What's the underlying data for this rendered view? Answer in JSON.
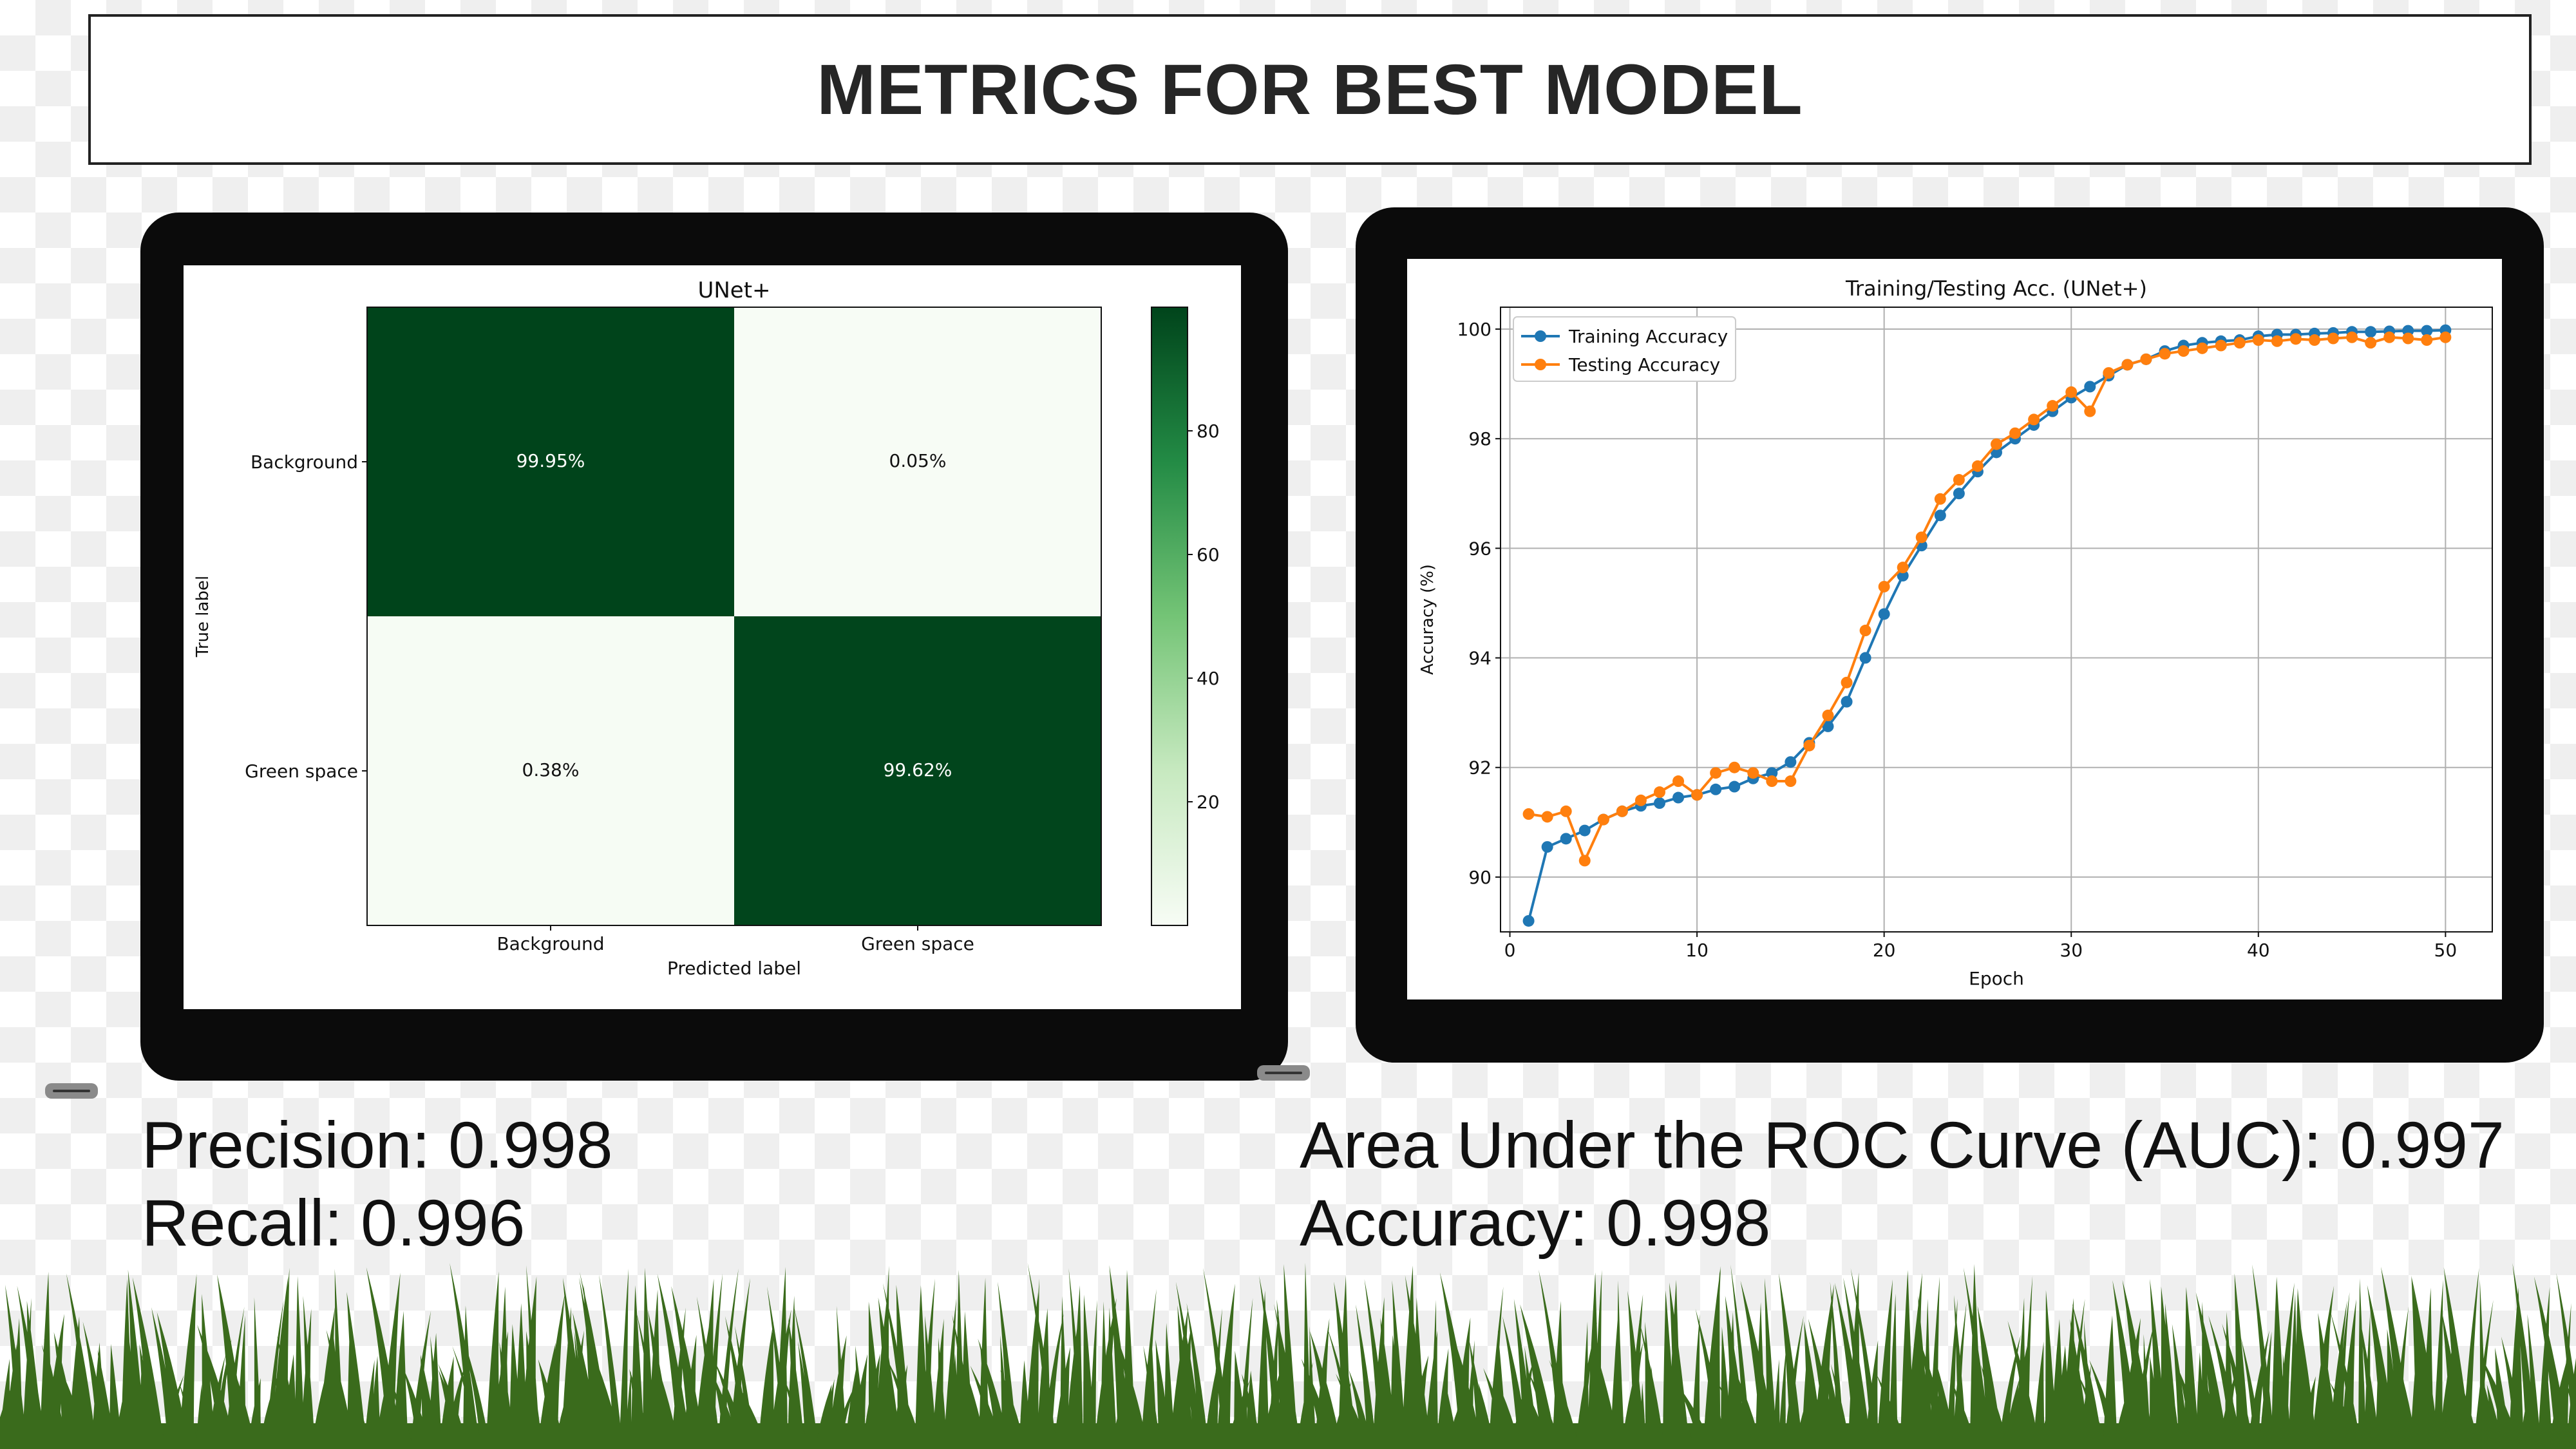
{
  "title": "METRICS FOR BEST MODEL",
  "metrics": {
    "precision": "Precision: 0.998",
    "recall": "Recall: 0.996",
    "auc": "Area Under the ROC Curve (AUC): 0.997",
    "accuracy": "Accuracy: 0.998"
  },
  "colors": {
    "cm_dark": "#00441b",
    "cm_light": "#f7fcf5",
    "train": "#1f77b4",
    "test": "#ff7f0e",
    "grass": "#3a6b1c"
  },
  "chart_data": [
    {
      "type": "heatmap",
      "title": "UNet+",
      "xlabel": "Predicted label",
      "ylabel": "True label",
      "x_categories": [
        "Background",
        "Green space"
      ],
      "y_categories": [
        "Background",
        "Green space"
      ],
      "values": [
        [
          99.95,
          0.05
        ],
        [
          0.38,
          99.62
        ]
      ],
      "cell_labels": [
        [
          "99.95%",
          "0.05%"
        ],
        [
          "0.38%",
          "99.62%"
        ]
      ],
      "colorbar": {
        "ticks": [
          20,
          40,
          60,
          80
        ],
        "range": [
          0,
          100
        ],
        "colormap": "Greens"
      }
    },
    {
      "type": "line",
      "title": "Training/Testing Acc. (UNet+)",
      "xlabel": "Epoch",
      "ylabel": "Accuracy (%)",
      "xlim": [
        -0.5,
        52.5
      ],
      "ylim": [
        89.0,
        100.4
      ],
      "xticks": [
        0,
        10,
        20,
        30,
        40,
        50
      ],
      "yticks": [
        90,
        92,
        94,
        96,
        98,
        100
      ],
      "grid": true,
      "legend": "top-left",
      "x": [
        1,
        2,
        3,
        4,
        5,
        6,
        7,
        8,
        9,
        10,
        11,
        12,
        13,
        14,
        15,
        16,
        17,
        18,
        19,
        20,
        21,
        22,
        23,
        24,
        25,
        26,
        27,
        28,
        29,
        30,
        31,
        32,
        33,
        34,
        35,
        36,
        37,
        38,
        39,
        40,
        41,
        42,
        43,
        44,
        45,
        46,
        47,
        48,
        49,
        50
      ],
      "series": [
        {
          "name": "Training Accuracy",
          "values": [
            89.2,
            90.55,
            90.7,
            90.85,
            91.05,
            91.2,
            91.3,
            91.35,
            91.45,
            91.5,
            91.6,
            91.65,
            91.8,
            91.9,
            92.1,
            92.45,
            92.75,
            93.2,
            94.0,
            94.8,
            95.5,
            96.05,
            96.6,
            97.0,
            97.4,
            97.75,
            98.0,
            98.25,
            98.5,
            98.75,
            98.95,
            99.15,
            99.35,
            99.45,
            99.6,
            99.7,
            99.75,
            99.78,
            99.8,
            99.87,
            99.9,
            99.9,
            99.92,
            99.93,
            99.95,
            99.95,
            99.96,
            99.97,
            99.97,
            99.98
          ]
        },
        {
          "name": "Testing Accuracy",
          "values": [
            91.15,
            91.1,
            91.2,
            90.3,
            91.05,
            91.2,
            91.4,
            91.55,
            91.75,
            91.5,
            91.9,
            92.0,
            91.9,
            91.75,
            91.75,
            92.4,
            92.95,
            93.55,
            94.5,
            95.3,
            95.65,
            96.2,
            96.9,
            97.25,
            97.5,
            97.9,
            98.1,
            98.35,
            98.6,
            98.85,
            98.5,
            99.2,
            99.35,
            99.45,
            99.55,
            99.6,
            99.65,
            99.7,
            99.75,
            99.8,
            99.78,
            99.82,
            99.8,
            99.83,
            99.85,
            99.75,
            99.85,
            99.83,
            99.8,
            99.85
          ]
        }
      ]
    }
  ]
}
